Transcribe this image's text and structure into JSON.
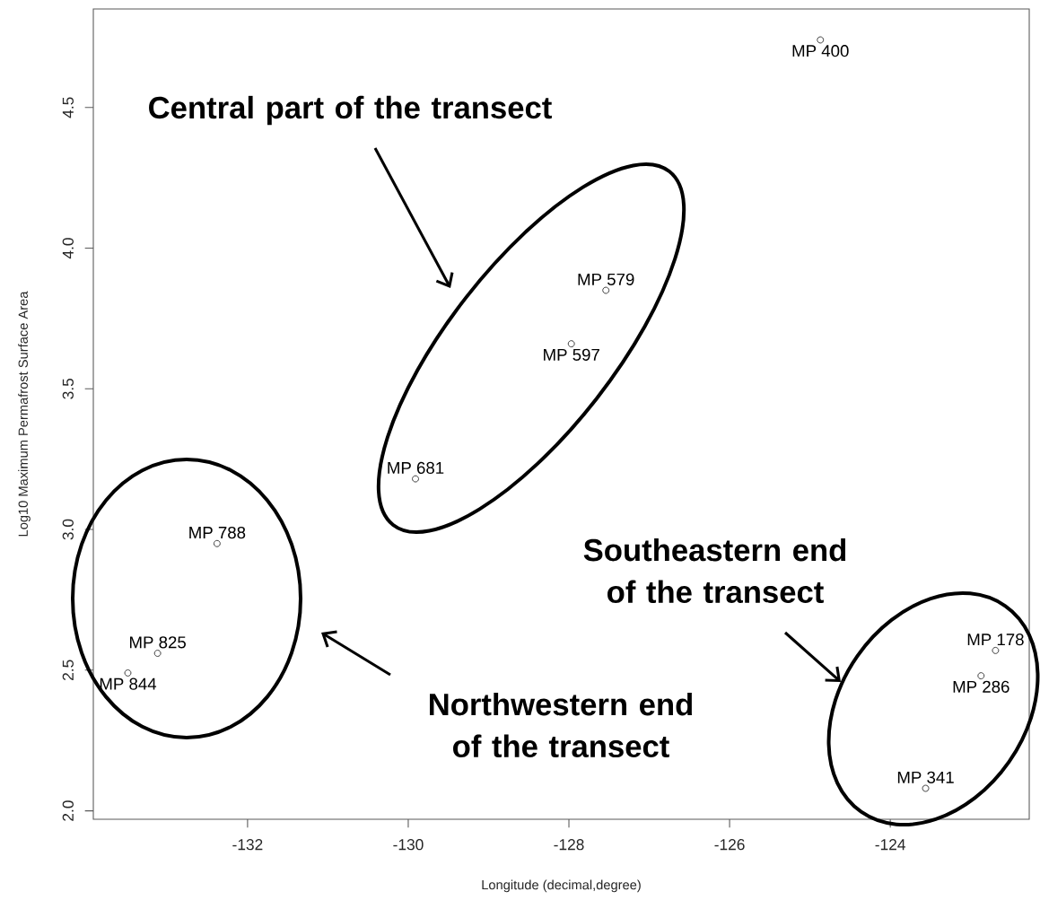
{
  "chart_data": {
    "type": "scatter",
    "xlabel": "Longitude (decimal,degree)",
    "ylabel": "Log10 Maximum Permafrost Surface Area",
    "x": [
      -133.49,
      -133.12,
      -132.38,
      -129.91,
      -127.97,
      -127.54,
      -124.87,
      -123.56,
      -122.87,
      -122.69
    ],
    "values": [
      2.49,
      2.56,
      2.95,
      3.18,
      3.66,
      3.85,
      4.74,
      2.08,
      2.48,
      2.57
    ],
    "value_labels": [
      "MP 844",
      "MP 825",
      "MP 788",
      "MP 681",
      "MP 597",
      "MP 579",
      "MP 400",
      "MP 341",
      "MP 286",
      "MP 178"
    ],
    "color": "#333333",
    "marker": "circle",
    "xlim": [
      -133.92,
      -122.27
    ],
    "ylim": [
      1.97,
      4.85
    ],
    "xticks": [
      -132,
      -130,
      -128,
      -126,
      -124
    ],
    "yticks": [
      {
        "value": 2,
        "label": "2.0"
      },
      {
        "value": 2.5,
        "label": "2.5"
      },
      {
        "value": 3,
        "label": "3.0"
      },
      {
        "value": 3.5,
        "label": "3.5"
      },
      {
        "value": 4,
        "label": "4.0"
      },
      {
        "value": 4.5,
        "label": "4.5"
      }
    ],
    "annotations": [
      "Central part of the transect",
      "Northwestern end of the transect",
      "Southeastern end of the transect"
    ]
  }
}
